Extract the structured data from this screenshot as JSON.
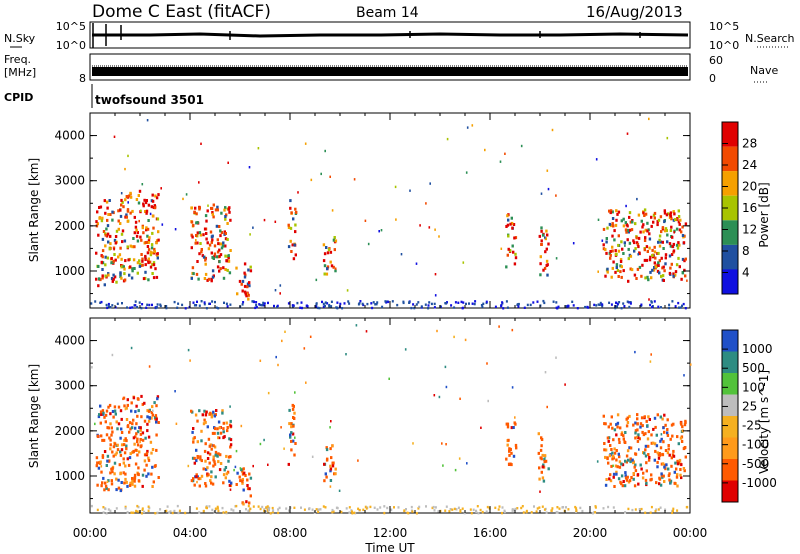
{
  "header": {
    "station": "Dome C East (fitACF)",
    "beam": "Beam 14",
    "date": "16/Aug/2013"
  },
  "sky_panel": {
    "left_label": "N.Sky",
    "left_ticks": [
      "10^5",
      "10^0"
    ],
    "right_label": "N.Search",
    "right_ticks": [
      "10^5",
      "10^0"
    ]
  },
  "freq_panel": {
    "left_label_1": "Freq.",
    "left_label_2": "[MHz]",
    "left_ticks": [
      "",
      "8"
    ],
    "right_label": "Nave",
    "right_ticks": [
      "60",
      "0"
    ]
  },
  "cpid": {
    "label": "CPID",
    "value": "twofsound 3501"
  },
  "x_axis": {
    "label": "Time UT",
    "ticks": [
      "00:00",
      "04:00",
      "08:00",
      "12:00",
      "16:00",
      "20:00",
      "00:00"
    ]
  },
  "power_colorbar": {
    "label": "Power [dB]",
    "ticks": [
      "28",
      "24",
      "20",
      "16",
      "12",
      "8",
      "4"
    ],
    "colors": [
      "#e00000",
      "#f24a00",
      "#f5a000",
      "#a8c400",
      "#2c8f55",
      "#2050a0",
      "#1010e0"
    ]
  },
  "velocity_colorbar": {
    "label": "Velocity [m s^-1]",
    "ticks": [
      "1000",
      "500",
      "100",
      "25",
      "-25",
      "-100",
      "-500",
      "-1000"
    ],
    "colors": [
      "#2050c8",
      "#2e8c82",
      "#52c23a",
      "#bdbdbd",
      "#f5b020",
      "#ff9a1a",
      "#ff5a00",
      "#e00000"
    ]
  },
  "chart_data": {
    "type": "heatmap",
    "title": "",
    "xlabel": "Time UT",
    "ylabel": "Slant Range [km]",
    "x_range_hours": [
      0,
      24
    ],
    "ylim_km": [
      180,
      4500
    ],
    "y_ticks": [
      "1000",
      "2000",
      "3000",
      "4000"
    ],
    "grid": false,
    "echo_regions": [
      {
        "t_start": 0.2,
        "t_end": 1.3,
        "range_start": 700,
        "range_end": 2600
      },
      {
        "t_start": 1.3,
        "t_end": 2.7,
        "range_start": 800,
        "range_end": 2800
      },
      {
        "t_start": 4.0,
        "t_end": 5.6,
        "range_start": 800,
        "range_end": 2500
      },
      {
        "t_start": 5.8,
        "t_end": 6.4,
        "range_start": 400,
        "range_end": 1200
      },
      {
        "t_start": 7.9,
        "t_end": 8.2,
        "range_start": 1200,
        "range_end": 2600
      },
      {
        "t_start": 9.3,
        "t_end": 9.8,
        "range_start": 900,
        "range_end": 1800
      },
      {
        "t_start": 16.6,
        "t_end": 17.0,
        "range_start": 1100,
        "range_end": 2300
      },
      {
        "t_start": 17.9,
        "t_end": 18.3,
        "range_start": 900,
        "range_end": 2000
      },
      {
        "t_start": 20.5,
        "t_end": 23.8,
        "range_start": 800,
        "range_end": 2400
      }
    ]
  }
}
